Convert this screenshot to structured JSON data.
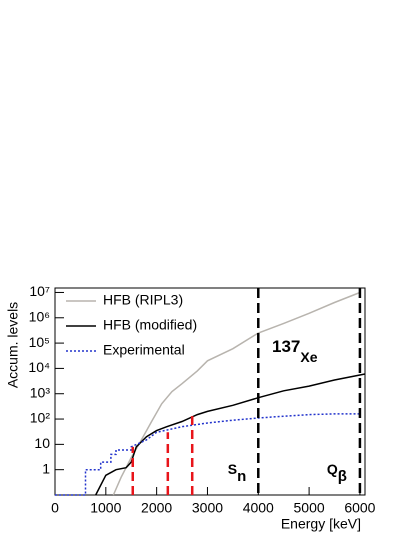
{
  "chart_data": {
    "type": "line",
    "y_label": "Accum. levels",
    "x_label": "Energy [keV]",
    "xlim": [
      0,
      6100
    ],
    "ylim": [
      0.1,
      15000000
    ],
    "log_y": true,
    "xticks": [
      0,
      1000,
      2000,
      3000,
      4000,
      5000,
      6000
    ],
    "yticks": [
      1,
      10,
      {
        "value": 100,
        "label": "10²"
      },
      {
        "value": 1000,
        "label": "10³"
      },
      {
        "value": 10000,
        "label": "10⁴"
      },
      {
        "value": 100000,
        "label": "10⁵"
      },
      {
        "value": 1000000,
        "label": "10⁶"
      },
      {
        "value": 10000000,
        "label": "10⁷"
      }
    ],
    "legend": "top-left",
    "series": [
      {
        "name": "HFB (RIPL3)",
        "color": "#b8b4ae",
        "dash": "solid",
        "x": [
          1150,
          1300,
          1500,
          1700,
          1900,
          2100,
          2300,
          2500,
          2800,
          3000,
          3500,
          4000,
          4500,
          5000,
          5500,
          6000
        ],
        "values": [
          0.1,
          0.5,
          3,
          15,
          80,
          400,
          1200,
          2500,
          8000,
          20000,
          60000,
          250000,
          600000,
          1500000,
          4000000,
          10000000
        ]
      },
      {
        "name": "HFB (modified)",
        "color": "#000000",
        "dash": "solid",
        "x": [
          800,
          1000,
          1200,
          1400,
          1500,
          1600,
          1800,
          2000,
          2200,
          2500,
          2800,
          3000,
          3500,
          4000,
          4500,
          5000,
          5500,
          6100
        ],
        "values": [
          0.1,
          0.6,
          1,
          1.2,
          2,
          8,
          20,
          35,
          50,
          80,
          150,
          200,
          350,
          700,
          1300,
          2000,
          3500,
          6000
        ]
      },
      {
        "name": "Experimental",
        "color": "#2233cc",
        "dash": "dotted",
        "x": [
          0,
          600,
          600,
          900,
          900,
          1100,
          1100,
          1200,
          1200,
          1500,
          1500,
          1800,
          2000,
          2500,
          3000,
          3500,
          4000,
          4500,
          5000,
          5500,
          6000
        ],
        "values": [
          0.1,
          0.1,
          1,
          1,
          2,
          2,
          4,
          4,
          6,
          6,
          8,
          15,
          30,
          50,
          70,
          90,
          110,
          130,
          150,
          160,
          160
        ]
      }
    ],
    "red_markers": {
      "color": "#e8141a",
      "x": [
        1530,
        2220,
        2700
      ],
      "values": [
        8,
        30,
        130
      ]
    },
    "vlines": {
      "color": "#000000",
      "x": [
        4000,
        6000
      ]
    },
    "annotations": [
      {
        "text": "S",
        "sub": "n",
        "x": 3400
      },
      {
        "text": "Q",
        "sub": "β",
        "x": 5350
      }
    ],
    "isotope": {
      "mass": "137",
      "element": "Xe"
    }
  }
}
